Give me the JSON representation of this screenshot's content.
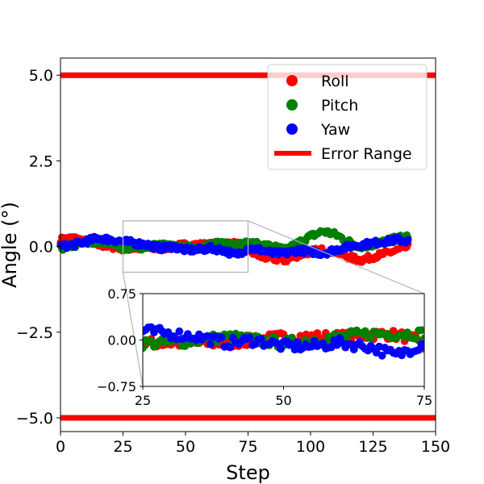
{
  "chart_data": {
    "type": "scatter",
    "title": "",
    "xlabel": "Step",
    "ylabel": "Angle (°)",
    "xlim": [
      0,
      150
    ],
    "ylim": [
      -5.4,
      5.5
    ],
    "xticks": [
      "0",
      "25",
      "50",
      "75",
      "100",
      "125",
      "150"
    ],
    "yticks": [
      "−5.0",
      "−2.5",
      "0.0",
      "2.5",
      "5.0"
    ],
    "grid": false,
    "legend_position": "upper right",
    "error_range": {
      "name": "Error Range",
      "values": [
        -5.0,
        5.0
      ],
      "color": "#ff0000"
    },
    "series": [
      {
        "name": "Roll",
        "color": "#ff0000",
        "key_points": [
          [
            0,
            0.2
          ],
          [
            5,
            0.25
          ],
          [
            10,
            0.15
          ],
          [
            15,
            0.05
          ],
          [
            20,
            0.0
          ],
          [
            25,
            -0.05
          ],
          [
            30,
            -0.05
          ],
          [
            40,
            -0.05
          ],
          [
            50,
            0.05
          ],
          [
            60,
            0.05
          ],
          [
            68,
            0.1
          ],
          [
            72,
            0.05
          ],
          [
            75,
            -0.1
          ],
          [
            80,
            -0.3
          ],
          [
            85,
            -0.35
          ],
          [
            90,
            -0.4
          ],
          [
            95,
            -0.25
          ],
          [
            100,
            -0.15
          ],
          [
            105,
            -0.1
          ],
          [
            110,
            -0.15
          ],
          [
            115,
            -0.3
          ],
          [
            120,
            -0.4
          ],
          [
            125,
            -0.3
          ],
          [
            130,
            -0.2
          ],
          [
            135,
            -0.1
          ],
          [
            139,
            0.0
          ]
        ]
      },
      {
        "name": "Pitch",
        "color": "#008000",
        "key_points": [
          [
            0,
            -0.05
          ],
          [
            10,
            0.1
          ],
          [
            20,
            0.15
          ],
          [
            25,
            -0.05
          ],
          [
            30,
            -0.05
          ],
          [
            40,
            0.05
          ],
          [
            50,
            -0.05
          ],
          [
            60,
            0.05
          ],
          [
            65,
            0.1
          ],
          [
            75,
            0.1
          ],
          [
            80,
            0.05
          ],
          [
            85,
            0.0
          ],
          [
            90,
            -0.1
          ],
          [
            95,
            0.1
          ],
          [
            100,
            0.3
          ],
          [
            105,
            0.45
          ],
          [
            110,
            0.35
          ],
          [
            115,
            0.15
          ],
          [
            120,
            0.0
          ],
          [
            125,
            0.05
          ],
          [
            130,
            0.15
          ],
          [
            135,
            0.25
          ],
          [
            139,
            0.3
          ]
        ]
      },
      {
        "name": "Yaw",
        "color": "#0000ff",
        "key_points": [
          [
            0,
            0.0
          ],
          [
            5,
            0.05
          ],
          [
            10,
            0.15
          ],
          [
            15,
            0.25
          ],
          [
            20,
            0.2
          ],
          [
            25,
            0.15
          ],
          [
            30,
            0.1
          ],
          [
            35,
            0.05
          ],
          [
            40,
            -0.05
          ],
          [
            45,
            0.0
          ],
          [
            50,
            -0.1
          ],
          [
            55,
            -0.1
          ],
          [
            60,
            -0.05
          ],
          [
            65,
            -0.1
          ],
          [
            70,
            -0.25
          ],
          [
            75,
            -0.05
          ],
          [
            80,
            -0.1
          ],
          [
            85,
            -0.2
          ],
          [
            90,
            -0.2
          ],
          [
            95,
            -0.1
          ],
          [
            100,
            -0.15
          ],
          [
            105,
            -0.2
          ],
          [
            110,
            -0.1
          ],
          [
            115,
            0.0
          ],
          [
            120,
            0.05
          ],
          [
            125,
            0.1
          ],
          [
            130,
            0.15
          ],
          [
            135,
            0.2
          ],
          [
            139,
            0.15
          ]
        ]
      }
    ],
    "inset": {
      "xlim": [
        25,
        75
      ],
      "ylim": [
        -0.75,
        0.75
      ],
      "xticks": [
        "25",
        "50",
        "75"
      ],
      "yticks": [
        "−0.75",
        "0.00",
        "0.75"
      ]
    }
  }
}
